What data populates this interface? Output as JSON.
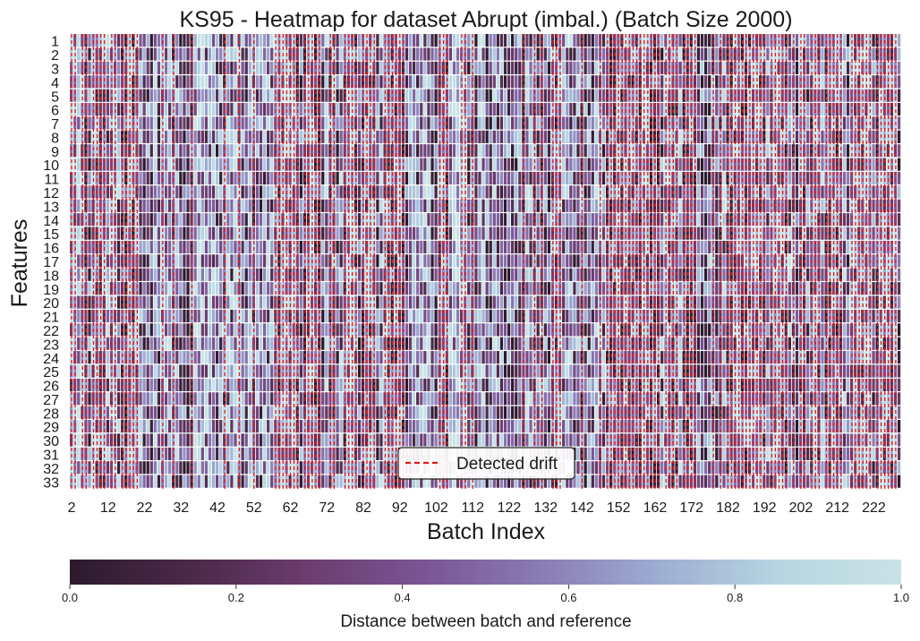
{
  "chart_data": {
    "type": "heatmap",
    "title": "KS95 - Heatmap for dataset Abrupt (imbal.) (Batch Size 2000)",
    "xlabel": "Batch Index",
    "ylabel": "Features",
    "x_first_batch": 2,
    "x_last_batch": 229,
    "x_tick_labels": [
      "2",
      "12",
      "22",
      "32",
      "42",
      "52",
      "62",
      "72",
      "82",
      "92",
      "102",
      "112",
      "122",
      "132",
      "142",
      "152",
      "162",
      "172",
      "182",
      "192",
      "202",
      "212",
      "222"
    ],
    "features": [
      "1",
      "2",
      "3",
      "4",
      "5",
      "6",
      "7",
      "8",
      "9",
      "10",
      "11",
      "12",
      "13",
      "14",
      "15",
      "16",
      "17",
      "18",
      "19",
      "20",
      "21",
      "22",
      "23",
      "24",
      "25",
      "26",
      "27",
      "28",
      "29",
      "30",
      "31",
      "32",
      "33"
    ],
    "value_range": [
      0.0,
      1.0
    ],
    "colormap": [
      "#2d1a2e",
      "#4a2848",
      "#6c3d6e",
      "#7a5595",
      "#8a7db5",
      "#9eafd2",
      "#b7d6e2",
      "#c8e3e6"
    ],
    "colorbar": {
      "label": "Distance between batch and reference",
      "ticks": [
        "0.0",
        "0.2",
        "0.4",
        "0.6",
        "0.8",
        "1.0"
      ]
    },
    "legend": {
      "label": "Detected drift",
      "color": "#e31a1c",
      "line_style": "dashed",
      "placement": "bottom-center"
    },
    "grid": false,
    "drift_batches": [
      2,
      3,
      5,
      6,
      8,
      9,
      10,
      11,
      13,
      14,
      16,
      17,
      18,
      19,
      20,
      27,
      30,
      35,
      44,
      48,
      52,
      58,
      59,
      60,
      61,
      62,
      63,
      64,
      66,
      67,
      68,
      69,
      70,
      73,
      74,
      77,
      78,
      79,
      80,
      82,
      83,
      84,
      85,
      88,
      89,
      90,
      91,
      92,
      93,
      103,
      104,
      105,
      109,
      110,
      112,
      126,
      129,
      131,
      134,
      135,
      136,
      142,
      147,
      149,
      150,
      151,
      152,
      153,
      154,
      155,
      156,
      157,
      158,
      159,
      160,
      161,
      162,
      163,
      165,
      166,
      167,
      168,
      170,
      171,
      172,
      173,
      178,
      180,
      182,
      183,
      184,
      185,
      186,
      187,
      188,
      189,
      190,
      191,
      192,
      194,
      195,
      196,
      197,
      198,
      200,
      202,
      203,
      205,
      206,
      207,
      209,
      210,
      211,
      212,
      213,
      216,
      217,
      218,
      219,
      220,
      221,
      223,
      224,
      225,
      226,
      227,
      228
    ]
  }
}
